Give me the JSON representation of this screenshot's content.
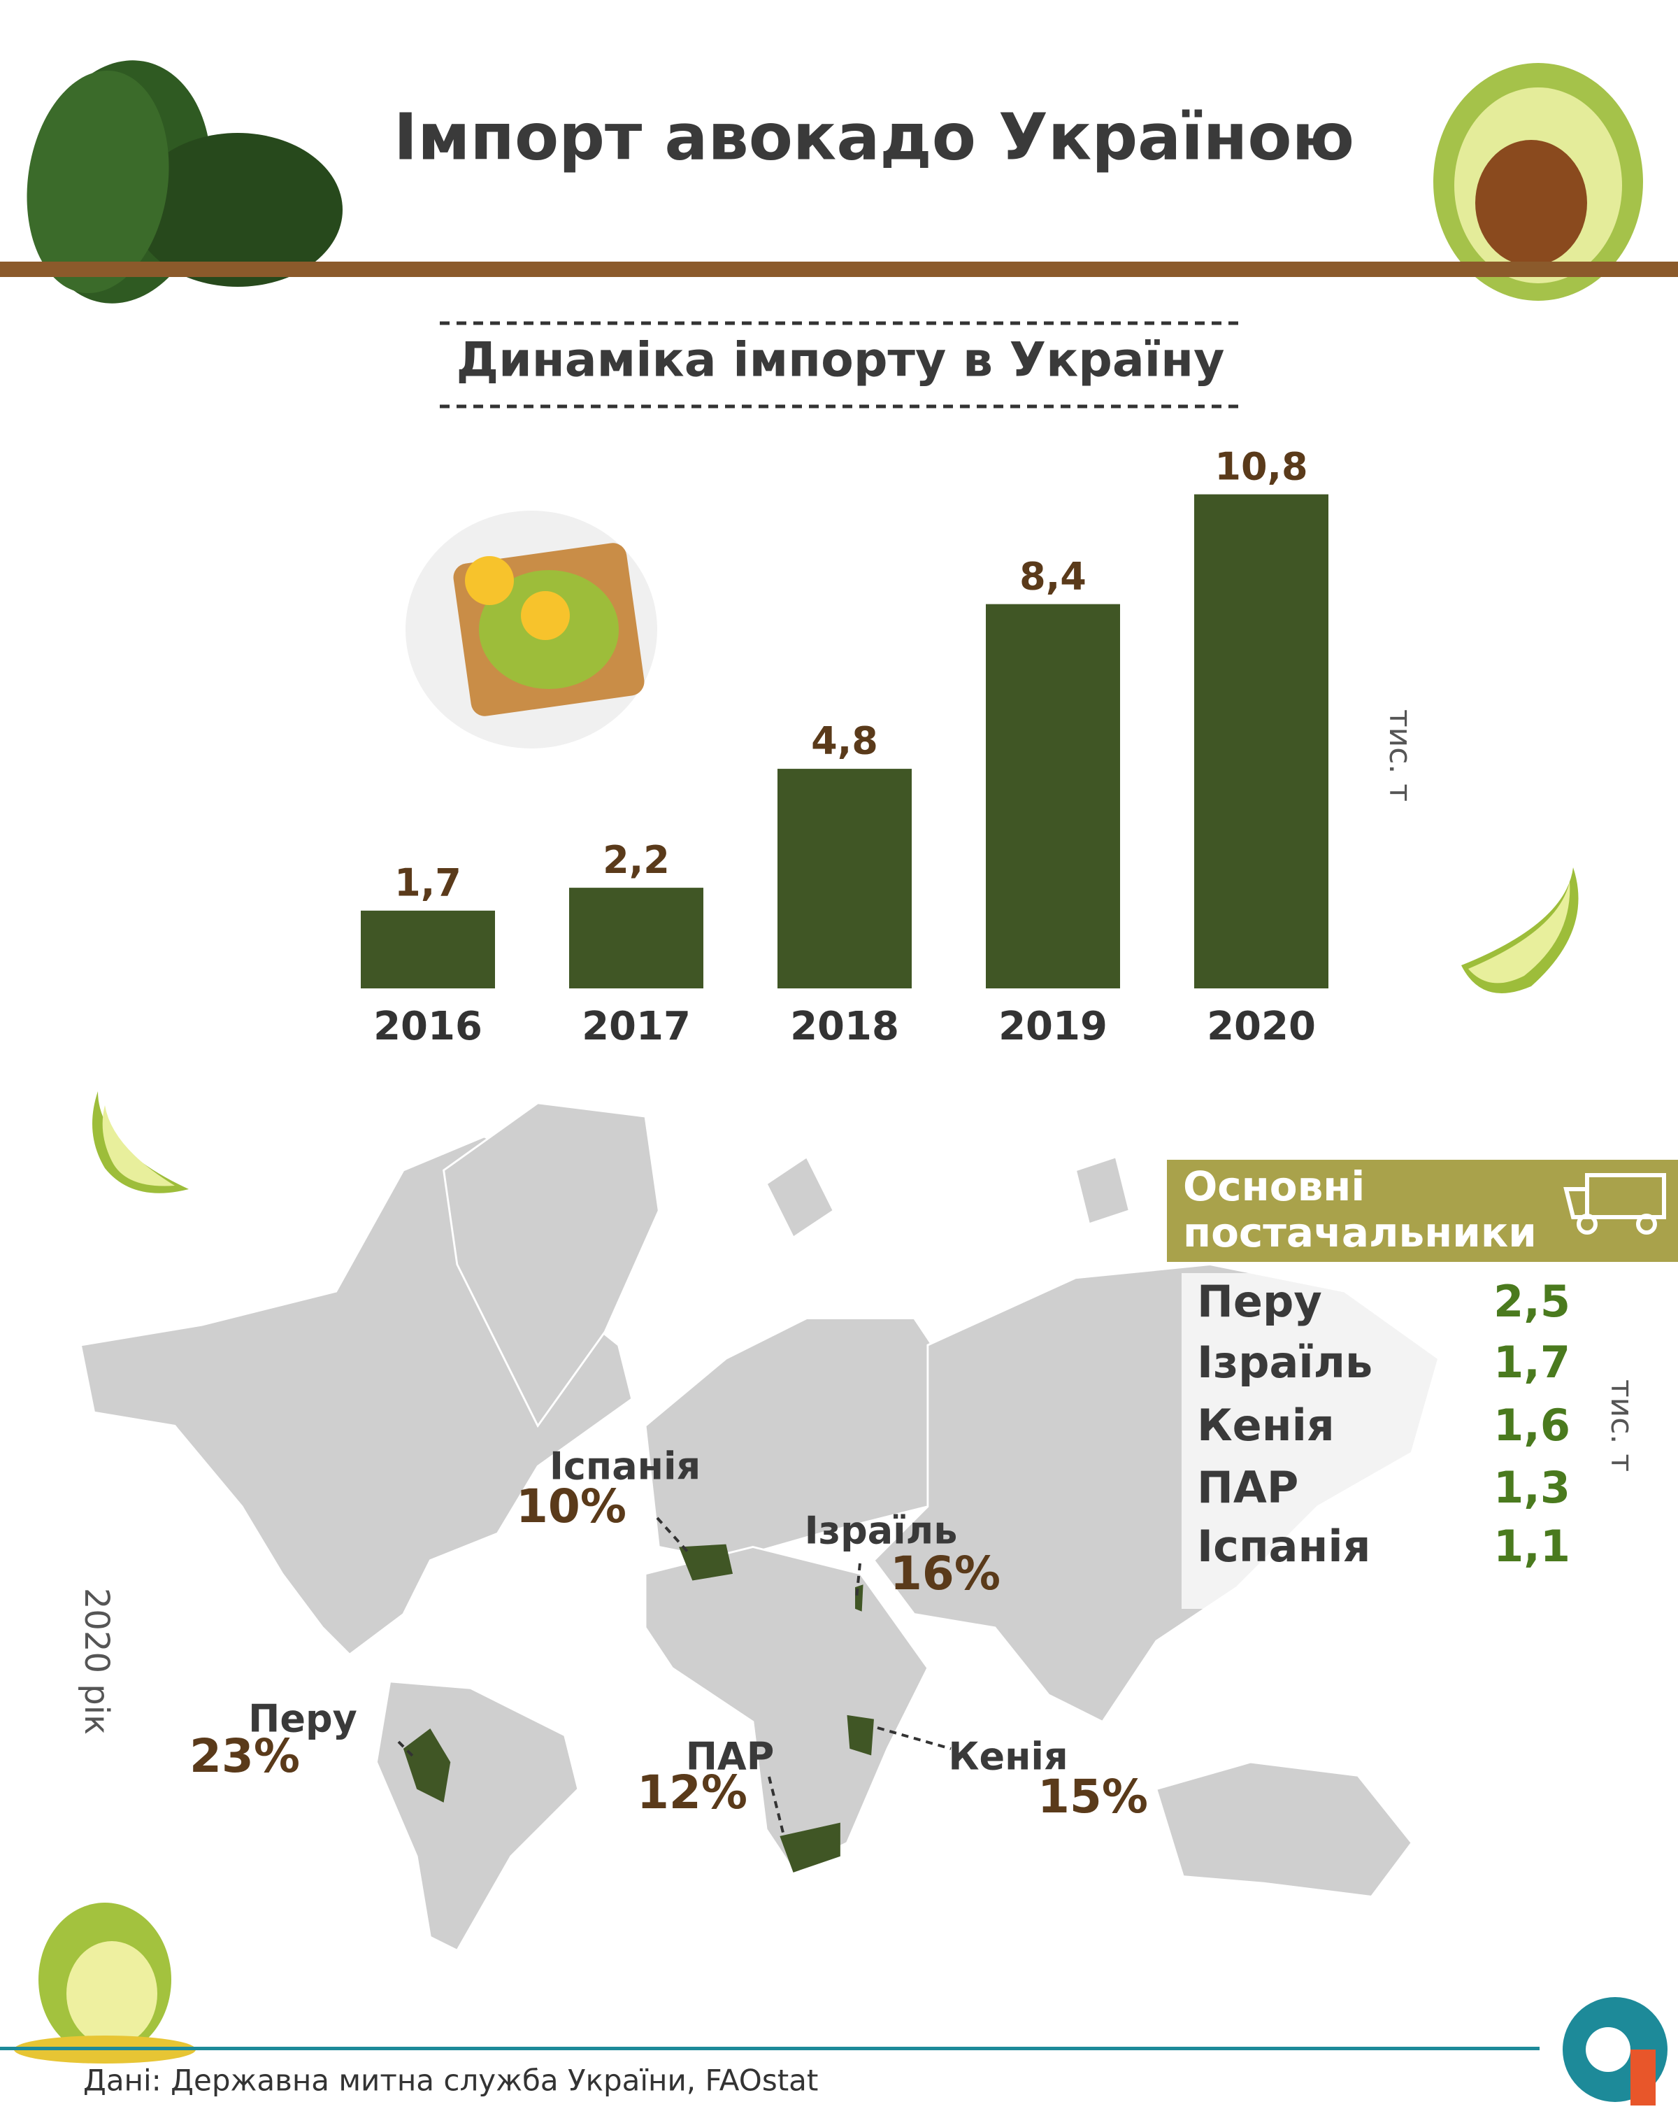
{
  "title": "Імпорт авокадо Україною",
  "chart_data": {
    "type": "bar",
    "title": "Динаміка імпорту в Україну",
    "categories": [
      "2016",
      "2017",
      "2018",
      "2019",
      "2020"
    ],
    "values": [
      1.7,
      2.2,
      4.8,
      8.4,
      10.8
    ],
    "value_labels": [
      "1,7",
      "2,2",
      "4,8",
      "8,4",
      "10,8"
    ],
    "unit_label": "тис. т",
    "color": "#405625",
    "label_color": "#5a3a1a"
  },
  "map": {
    "year_label": "2020 рік",
    "countries": [
      {
        "name": "Іспанія",
        "share": "10%"
      },
      {
        "name": "Ізраїль",
        "share": "16%"
      },
      {
        "name": "Перу",
        "share": "23%"
      },
      {
        "name": "ПАР",
        "share": "12%"
      },
      {
        "name": "Кенія",
        "share": "15%"
      }
    ]
  },
  "suppliers": {
    "title": [
      "Основні",
      "постачальники"
    ],
    "unit": "тис. т",
    "rows": [
      {
        "country": "Перу",
        "value": "2,5"
      },
      {
        "country": "Ізраїль",
        "value": "1,7"
      },
      {
        "country": "Кенія",
        "value": "1,6"
      },
      {
        "country": "ПАР",
        "value": "1,3"
      },
      {
        "country": "Іспанія",
        "value": "1,1"
      }
    ]
  },
  "source": "Дані: Державна митна служба України, FAOstat"
}
